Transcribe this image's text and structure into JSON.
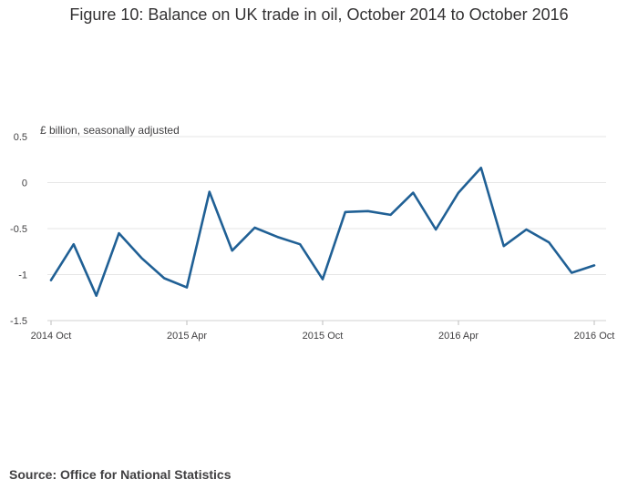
{
  "chart_data": {
    "type": "line",
    "title": "Figure 10: Balance on UK trade in oil, October 2014 to October 2016",
    "ylabel": "£ billion, seasonally adjusted",
    "xlabel": "",
    "ylim": [
      -1.5,
      0.5
    ],
    "yticks": [
      0.5,
      0,
      -0.5,
      -1,
      -1.5
    ],
    "ytick_labels": [
      "0.5",
      "0",
      "-0.5",
      "-1",
      "-1.5"
    ],
    "xticks": [
      {
        "index": 0,
        "label": "2014 Oct"
      },
      {
        "index": 6,
        "label": "2015 Apr"
      },
      {
        "index": 12,
        "label": "2015 Oct"
      },
      {
        "index": 18,
        "label": "2016 Apr"
      },
      {
        "index": 24,
        "label": "2016 Oct"
      }
    ],
    "grid": true,
    "color": "#206095",
    "series": [
      {
        "x": [
          "2014 Oct",
          "2014 Nov",
          "2014 Dec",
          "2015 Jan",
          "2015 Feb",
          "2015 Mar",
          "2015 Apr",
          "2015 May",
          "2015 Jun",
          "2015 Jul",
          "2015 Aug",
          "2015 Sep",
          "2015 Oct",
          "2015 Nov",
          "2015 Dec",
          "2016 Jan",
          "2016 Feb",
          "2016 Mar",
          "2016 Apr",
          "2016 May",
          "2016 Jun",
          "2016 Jul",
          "2016 Aug",
          "2016 Sep",
          "2016 Oct"
        ],
        "values": [
          -1.06,
          -0.67,
          -1.23,
          -0.55,
          -0.82,
          -1.04,
          -1.14,
          -0.1,
          -0.74,
          -0.49,
          -0.59,
          -0.67,
          -1.05,
          -0.32,
          -0.31,
          -0.35,
          -0.11,
          -0.51,
          -0.11,
          0.16,
          -0.69,
          -0.51,
          -0.65,
          -0.98,
          -0.9
        ]
      }
    ]
  },
  "source": "Source: Office for National Statistics"
}
